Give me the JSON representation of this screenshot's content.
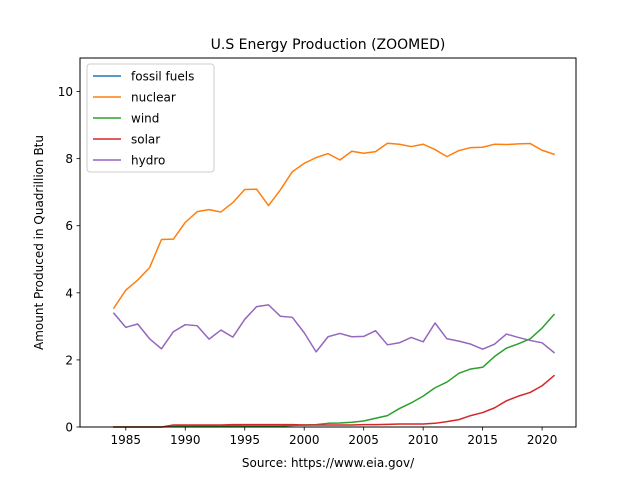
{
  "chart_data": {
    "type": "line",
    "title": "U.S Energy Production (ZOOMED)",
    "xlabel": "Source: https://www.eia.gov/",
    "ylabel": "Amount Produced in Quadrillion Btu",
    "xlim": [
      1981.15,
      2022.85
    ],
    "ylim": [
      0,
      11
    ],
    "xticks": [
      1985,
      1990,
      1995,
      2000,
      2005,
      2010,
      2015,
      2020
    ],
    "yticks": [
      0,
      2,
      4,
      6,
      8,
      10
    ],
    "grid": false,
    "legend_position": "top-left",
    "x": [
      1984,
      1985,
      1986,
      1987,
      1988,
      1989,
      1990,
      1991,
      1992,
      1993,
      1994,
      1995,
      1996,
      1997,
      1998,
      1999,
      2000,
      2001,
      2002,
      2003,
      2004,
      2005,
      2006,
      2007,
      2008,
      2009,
      2010,
      2011,
      2012,
      2013,
      2014,
      2015,
      2016,
      2017,
      2018,
      2019,
      2020,
      2021
    ],
    "series": [
      {
        "name": "fossil fuels",
        "color": "#1f77b4",
        "values": [
          null,
          null,
          null,
          null,
          null,
          null,
          null,
          null,
          null,
          null,
          null,
          null,
          null,
          null,
          null,
          null,
          null,
          null,
          null,
          null,
          null,
          null,
          null,
          null,
          null,
          null,
          null,
          null,
          null,
          null,
          null,
          null,
          null,
          null,
          null,
          null,
          null,
          null
        ]
      },
      {
        "name": "nuclear",
        "color": "#ff7f0e",
        "values": [
          3.55,
          4.08,
          4.38,
          4.75,
          5.59,
          5.6,
          6.1,
          6.42,
          6.48,
          6.41,
          6.69,
          7.08,
          7.09,
          6.6,
          7.07,
          7.61,
          7.86,
          8.03,
          8.15,
          7.96,
          8.22,
          8.16,
          8.21,
          8.46,
          8.43,
          8.36,
          8.43,
          8.27,
          8.06,
          8.24,
          8.33,
          8.34,
          8.43,
          8.42,
          8.44,
          8.45,
          8.25,
          8.13
        ]
      },
      {
        "name": "wind",
        "color": "#2ca02c",
        "values": [
          0.0,
          0.0,
          0.0,
          0.0,
          0.0,
          0.02,
          0.03,
          0.03,
          0.03,
          0.03,
          0.04,
          0.03,
          0.03,
          0.03,
          0.03,
          0.05,
          0.06,
          0.07,
          0.11,
          0.12,
          0.14,
          0.18,
          0.26,
          0.34,
          0.55,
          0.72,
          0.92,
          1.17,
          1.34,
          1.6,
          1.73,
          1.78,
          2.1,
          2.35,
          2.48,
          2.63,
          2.95,
          3.35
        ]
      },
      {
        "name": "solar",
        "color": "#d62728",
        "values": [
          0.0,
          0.0,
          0.0,
          0.0,
          0.0,
          0.06,
          0.06,
          0.06,
          0.06,
          0.06,
          0.07,
          0.07,
          0.07,
          0.07,
          0.07,
          0.07,
          0.06,
          0.06,
          0.06,
          0.06,
          0.06,
          0.07,
          0.07,
          0.08,
          0.09,
          0.09,
          0.09,
          0.11,
          0.16,
          0.22,
          0.34,
          0.43,
          0.57,
          0.78,
          0.92,
          1.03,
          1.23,
          1.53
        ]
      },
      {
        "name": "hydro",
        "color": "#9467bd",
        "values": [
          3.39,
          2.97,
          3.07,
          2.63,
          2.33,
          2.84,
          3.05,
          3.02,
          2.62,
          2.89,
          2.68,
          3.21,
          3.59,
          3.64,
          3.3,
          3.27,
          2.81,
          2.24,
          2.69,
          2.79,
          2.69,
          2.7,
          2.87,
          2.45,
          2.51,
          2.67,
          2.54,
          3.1,
          2.63,
          2.56,
          2.47,
          2.32,
          2.47,
          2.77,
          2.67,
          2.58,
          2.51,
          2.22
        ]
      }
    ]
  }
}
